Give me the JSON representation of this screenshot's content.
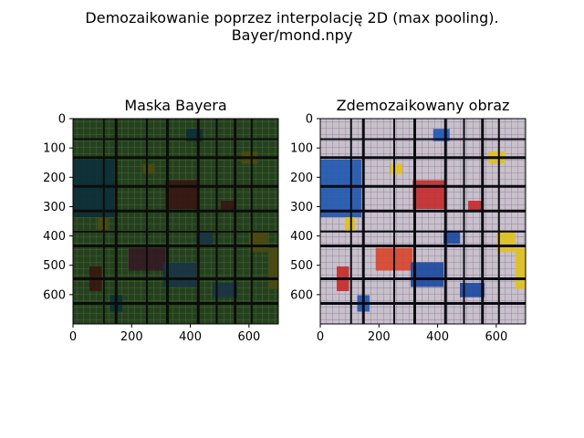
{
  "figure": {
    "title_line1": "Demozaikowanie poprzez interpolację 2D (max pooling).",
    "title_line2": "Bayer/mond.npy"
  },
  "chart_data": [
    {
      "type": "heatmap",
      "title": "Maska Bayera",
      "xlabel": "",
      "ylabel": "",
      "xlim": [
        0,
        700
      ],
      "ylim": [
        700,
        0
      ],
      "xticks": [
        0,
        200,
        400,
        600
      ],
      "yticks": [
        0,
        100,
        200,
        300,
        400,
        500,
        600
      ],
      "grid": false,
      "palette": {
        "background": "#26401f",
        "fine_grid": "#3e6a32",
        "lines": "#0b0d08",
        "blocks": [
          "#0c2f3a",
          "#3a1512",
          "#1b3345",
          "#4d4a12",
          "#341a22"
        ]
      }
    },
    {
      "type": "heatmap",
      "title": "Zdemozaikowany obraz",
      "xlabel": "",
      "ylabel": "",
      "xlim": [
        0,
        700
      ],
      "ylim": [
        700,
        0
      ],
      "xticks": [
        0,
        200,
        400,
        600
      ],
      "yticks": [
        0,
        100,
        200,
        300,
        400,
        500,
        600
      ],
      "grid": false,
      "palette": {
        "background": "#c9c0cb",
        "fine_grid": "#8e86a0",
        "lines": "#0b0b12",
        "blocks": [
          "#1e56b0",
          "#c42a2a",
          "#1a47a0",
          "#e0c21c",
          "#d8442a"
        ]
      }
    }
  ]
}
